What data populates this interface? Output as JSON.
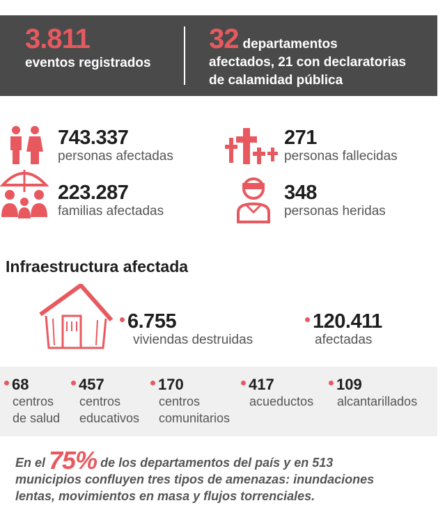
{
  "header": {
    "events_count": "3.811",
    "events_label": "eventos registrados",
    "departments_count": "32",
    "departments_line1": "departamentos",
    "departments_line2": "afectados, 21 con declaratorias",
    "departments_line3": "de calamidad pública"
  },
  "people": {
    "affected_count": "743.337",
    "affected_label": "personas afectadas",
    "deceased_count": "271",
    "deceased_label": "personas fallecidas",
    "families_count": "223.287",
    "families_label": "familias afectadas",
    "injured_count": "348",
    "injured_label": "personas heridas"
  },
  "infrastructure": {
    "title": "Infraestructura afectada",
    "destroyed_count": "6.755",
    "destroyed_label": "viviendas destruidas",
    "affected_count": "120.411",
    "affected_label": "afectadas",
    "items": [
      {
        "value": "68",
        "label1": "centros",
        "label2": "de salud"
      },
      {
        "value": "457",
        "label1": "centros",
        "label2": "educativos"
      },
      {
        "value": "170",
        "label1": "centros",
        "label2": "comunitarios"
      },
      {
        "value": "417",
        "label1": "acueductos",
        "label2": ""
      },
      {
        "value": "109",
        "label1": "alcantarillados",
        "label2": ""
      }
    ]
  },
  "footer": {
    "prefix": "En el",
    "percent": "75%",
    "line1": "de los departamentos del país y en 513",
    "line2": "municipios confluyen tres tipos de amenazas: inundaciones",
    "line3": "lentas, movimientos en masa y flujos torrenciales."
  },
  "colors": {
    "accent": "#e8595f",
    "band": "#4a4a4a",
    "band_light": "#f0f0f0"
  },
  "icons": [
    "people-icon",
    "crosses-icon",
    "family-umbrella-icon",
    "injured-person-icon",
    "house-icon"
  ]
}
